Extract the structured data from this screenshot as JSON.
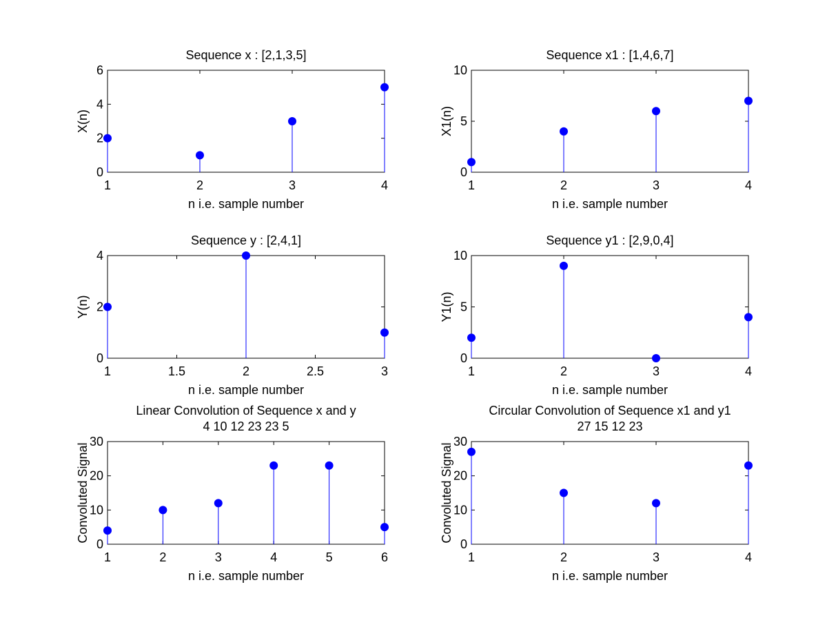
{
  "figure": {
    "background": "#ffffff",
    "stem_color": "#0000ff"
  },
  "chart_data": [
    {
      "type": "stem",
      "title": [
        "Sequence x : [2,1,3,5]"
      ],
      "xlabel": "n i.e. sample number",
      "ylabel": "X(n)",
      "x": [
        1,
        2,
        3,
        4
      ],
      "y": [
        2,
        1,
        3,
        5
      ],
      "xlim": [
        1,
        4
      ],
      "ylim": [
        0,
        6
      ],
      "xticks": [
        1,
        2,
        3,
        4
      ],
      "yticks": [
        0,
        2,
        4,
        6
      ],
      "xticklabels": [
        "1",
        "2",
        "3",
        "4"
      ],
      "yticklabels": [
        "0",
        "2",
        "4",
        "6"
      ],
      "grid": false
    },
    {
      "type": "stem",
      "title": [
        "Sequence x1 : [1,4,6,7]"
      ],
      "xlabel": "n i.e. sample number",
      "ylabel": "X1(n)",
      "x": [
        1,
        2,
        3,
        4
      ],
      "y": [
        1,
        4,
        6,
        7
      ],
      "xlim": [
        1,
        4
      ],
      "ylim": [
        0,
        10
      ],
      "xticks": [
        1,
        2,
        3,
        4
      ],
      "yticks": [
        0,
        5,
        10
      ],
      "xticklabels": [
        "1",
        "2",
        "3",
        "4"
      ],
      "yticklabels": [
        "0",
        "5",
        "10"
      ],
      "grid": false
    },
    {
      "type": "stem",
      "title": [
        "Sequence y : [2,4,1]"
      ],
      "xlabel": "n i.e. sample number",
      "ylabel": "Y(n)",
      "x": [
        1,
        2,
        3
      ],
      "y": [
        2,
        4,
        1
      ],
      "xlim": [
        1,
        3
      ],
      "ylim": [
        0,
        4
      ],
      "xticks": [
        1,
        1.5,
        2,
        2.5,
        3
      ],
      "yticks": [
        0,
        2,
        4
      ],
      "xticklabels": [
        "1",
        "1.5",
        "2",
        "2.5",
        "3"
      ],
      "yticklabels": [
        "0",
        "2",
        "4"
      ],
      "grid": false
    },
    {
      "type": "stem",
      "title": [
        "Sequence y1 : [2,9,0,4]"
      ],
      "xlabel": "n i.e. sample number",
      "ylabel": "Y1(n)",
      "x": [
        1,
        2,
        3,
        4
      ],
      "y": [
        2,
        9,
        0,
        4
      ],
      "xlim": [
        1,
        4
      ],
      "ylim": [
        0,
        10
      ],
      "xticks": [
        1,
        2,
        3,
        4
      ],
      "yticks": [
        0,
        5,
        10
      ],
      "xticklabels": [
        "1",
        "2",
        "3",
        "4"
      ],
      "yticklabels": [
        "0",
        "5",
        "10"
      ],
      "grid": false
    },
    {
      "type": "stem",
      "title": [
        "Linear Convolution of Sequence x and y",
        "4   10   12   23   23    5"
      ],
      "xlabel": "n i.e. sample number",
      "ylabel": "Convoluted Signal",
      "x": [
        1,
        2,
        3,
        4,
        5,
        6
      ],
      "y": [
        4,
        10,
        12,
        23,
        23,
        5
      ],
      "xlim": [
        1,
        6
      ],
      "ylim": [
        0,
        30
      ],
      "xticks": [
        1,
        2,
        3,
        4,
        5,
        6
      ],
      "yticks": [
        0,
        10,
        20,
        30
      ],
      "xticklabels": [
        "1",
        "2",
        "3",
        "4",
        "5",
        "6"
      ],
      "yticklabels": [
        "0",
        "10",
        "20",
        "30"
      ],
      "grid": false
    },
    {
      "type": "stem",
      "title": [
        "Circular Convolution of Sequence x1 and y1",
        "27   15   12   23"
      ],
      "xlabel": "n i.e. sample number",
      "ylabel": "Convoluted Signal",
      "x": [
        1,
        2,
        3,
        4
      ],
      "y": [
        27,
        15,
        12,
        23
      ],
      "xlim": [
        1,
        4
      ],
      "ylim": [
        0,
        30
      ],
      "xticks": [
        1,
        2,
        3,
        4
      ],
      "yticks": [
        0,
        10,
        20,
        30
      ],
      "xticklabels": [
        "1",
        "2",
        "3",
        "4"
      ],
      "yticklabels": [
        "0",
        "10",
        "20",
        "30"
      ],
      "grid": false
    }
  ]
}
